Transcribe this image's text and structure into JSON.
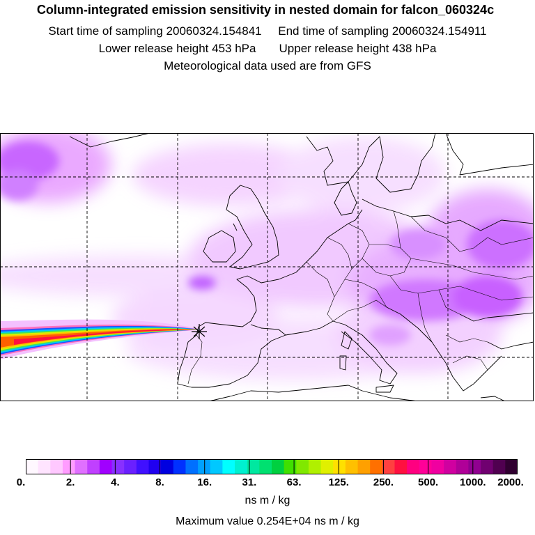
{
  "header": {
    "title": "Column-integrated emission sensitivity in nested domain for falcon_060324c",
    "start_label": "Start time of sampling 20060324.154841",
    "end_label": "End time of sampling 20060324.154911",
    "lower_label": "Lower release height  453 hPa",
    "upper_label": "Upper release height  438 hPa",
    "met_label": "Meteorological data used are from GFS"
  },
  "colorbar": {
    "ticks": [
      "0.",
      "2.",
      "4.",
      "8.",
      "16.",
      "31.",
      "63.",
      "125.",
      "250.",
      "500.",
      "1000.",
      "2000."
    ],
    "unit": "ns m / kg",
    "max_label": "Maximum value  0.254E+04 ns m / kg",
    "colors": [
      "#fff8ff",
      "#ffe4ff",
      "#ffc8ff",
      "#ff9cff",
      "#e070ff",
      "#c040ff",
      "#a000ff",
      "#8830ff",
      "#6a20ff",
      "#4010ff",
      "#2000f0",
      "#0000e0",
      "#0030ff",
      "#0070ff",
      "#00a0ff",
      "#00c8ff",
      "#00ffff",
      "#00f0d0",
      "#00e8a0",
      "#00e070",
      "#00d040",
      "#40e000",
      "#80e800",
      "#b0f000",
      "#e0f000",
      "#ffe000",
      "#ffc000",
      "#ffa000",
      "#ff7000",
      "#ff4040",
      "#ff1040",
      "#ff0080",
      "#ff0098",
      "#f000a0",
      "#d000a0",
      "#b00098",
      "#900090",
      "#700070",
      "#500050",
      "#300030"
    ]
  },
  "map": {
    "release_marker": "star-marker"
  }
}
